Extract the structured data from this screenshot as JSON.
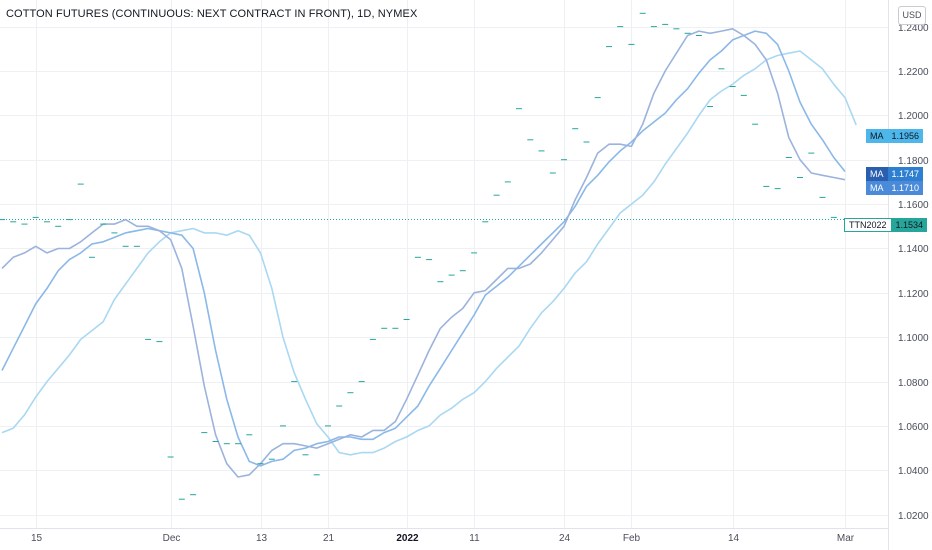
{
  "title": "COTTON FUTURES (CONTINUOUS: NEXT CONTRACT IN FRONT), 1D, NYMEX",
  "currency_button": "USD",
  "colors": {
    "price": "#26a69a",
    "ma_fast": "#9bb3dd",
    "ma_mid": "#8ab8e8",
    "ma_slow": "#a9d8f2",
    "tag_ma1": "#4db6ea",
    "tag_ma2": "#2f7fd0",
    "tag_ma3": "#4a8ad8",
    "tag_price": "#26a69a",
    "grid": "#eef0f3"
  },
  "tags": {
    "ma1": {
      "label": "MA",
      "value": "1.1956"
    },
    "ma2": {
      "label": "MA",
      "value": "1.1747"
    },
    "ma3": {
      "label": "MA",
      "value": "1.1710"
    },
    "price": {
      "label": "TTN2022",
      "value": "1.1534"
    }
  },
  "chart_data": {
    "type": "line",
    "title": "COTTON FUTURES (CONTINUOUS: NEXT CONTRACT IN FRONT), 1D, NYMEX",
    "ylim": [
      1.014,
      1.252
    ],
    "y_ticks": [
      "1.0200",
      "1.0400",
      "1.0600",
      "1.0800",
      "1.1000",
      "1.1200",
      "1.1400",
      "1.1600",
      "1.1800",
      "1.2000",
      "1.2200",
      "1.2400"
    ],
    "x_labels": [
      {
        "label": "15",
        "i": 3,
        "bold": false
      },
      {
        "label": "Dec",
        "i": 15,
        "bold": false
      },
      {
        "label": "13",
        "i": 23,
        "bold": false
      },
      {
        "label": "21",
        "i": 29,
        "bold": false
      },
      {
        "label": "2022",
        "i": 36,
        "bold": true
      },
      {
        "label": "11",
        "i": 42,
        "bold": false
      },
      {
        "label": "24",
        "i": 50,
        "bold": false
      },
      {
        "label": "Feb",
        "i": 56,
        "bold": false
      },
      {
        "label": "14",
        "i": 65,
        "bold": false
      },
      {
        "label": "Mar",
        "i": 75,
        "bold": false
      }
    ],
    "n_slots": 77,
    "current_price": 1.1534,
    "grid": true,
    "series": [
      {
        "key": "price",
        "type": "dash",
        "values": [
          1.153,
          1.152,
          1.151,
          1.154,
          1.152,
          1.15,
          1.153,
          1.169,
          1.136,
          1.151,
          1.147,
          1.141,
          1.141,
          1.099,
          1.098,
          1.046,
          1.027,
          1.029,
          1.057,
          1.053,
          1.052,
          1.052,
          1.056,
          1.043,
          1.045,
          1.06,
          1.08,
          1.047,
          1.038,
          1.06,
          1.069,
          1.075,
          1.08,
          1.099,
          1.104,
          1.104,
          1.108,
          1.136,
          1.135,
          1.125,
          1.128,
          1.13,
          1.138,
          1.152,
          1.164,
          1.17,
          1.203,
          1.189,
          1.184,
          1.174,
          1.18,
          1.194,
          1.188,
          1.208,
          1.231,
          1.24,
          1.232,
          1.246,
          1.24,
          1.241,
          1.239,
          1.237,
          1.236,
          1.204,
          1.221,
          1.213,
          1.209,
          1.196,
          1.168,
          1.167,
          1.181,
          1.172,
          1.183,
          1.163,
          1.154,
          null,
          null
        ]
      },
      {
        "key": "ma_fast",
        "type": "line",
        "values": [
          1.131,
          1.136,
          1.138,
          1.141,
          1.138,
          1.14,
          1.14,
          1.143,
          1.147,
          1.151,
          1.151,
          1.153,
          1.15,
          1.15,
          1.148,
          1.144,
          1.131,
          1.105,
          1.078,
          1.056,
          1.043,
          1.037,
          1.038,
          1.043,
          1.049,
          1.052,
          1.052,
          1.051,
          1.05,
          1.052,
          1.054,
          1.056,
          1.055,
          1.058,
          1.058,
          1.062,
          1.072,
          1.083,
          1.094,
          1.104,
          1.109,
          1.113,
          1.12,
          1.121,
          1.126,
          1.131,
          1.131,
          1.133,
          1.138,
          1.144,
          1.15,
          1.162,
          1.172,
          1.183,
          1.187,
          1.187,
          1.186,
          1.196,
          1.21,
          1.22,
          1.228,
          1.236,
          1.238,
          1.237,
          1.238,
          1.239,
          1.236,
          1.232,
          1.225,
          1.21,
          1.19,
          1.18,
          1.174,
          1.173,
          1.172,
          1.171,
          null
        ]
      },
      {
        "key": "ma_mid",
        "type": "line",
        "values": [
          1.085,
          1.095,
          1.105,
          1.115,
          1.122,
          1.13,
          1.135,
          1.138,
          1.142,
          1.143,
          1.145,
          1.147,
          1.148,
          1.149,
          1.148,
          1.147,
          1.146,
          1.14,
          1.12,
          1.094,
          1.072,
          1.055,
          1.044,
          1.042,
          1.044,
          1.045,
          1.049,
          1.05,
          1.052,
          1.053,
          1.055,
          1.055,
          1.054,
          1.054,
          1.057,
          1.059,
          1.064,
          1.069,
          1.078,
          1.086,
          1.094,
          1.102,
          1.11,
          1.119,
          1.123,
          1.127,
          1.132,
          1.137,
          1.142,
          1.147,
          1.152,
          1.159,
          1.168,
          1.173,
          1.179,
          1.184,
          1.188,
          1.193,
          1.197,
          1.201,
          1.207,
          1.212,
          1.219,
          1.225,
          1.229,
          1.234,
          1.236,
          1.238,
          1.237,
          1.232,
          1.22,
          1.206,
          1.196,
          1.189,
          1.181,
          1.1747,
          null
        ]
      },
      {
        "key": "ma_slow",
        "type": "line",
        "values": [
          1.057,
          1.059,
          1.065,
          1.073,
          1.08,
          1.086,
          1.092,
          1.099,
          1.103,
          1.107,
          1.117,
          1.124,
          1.131,
          1.138,
          1.143,
          1.147,
          1.148,
          1.149,
          1.147,
          1.147,
          1.146,
          1.148,
          1.146,
          1.138,
          1.122,
          1.1,
          1.084,
          1.072,
          1.061,
          1.055,
          1.048,
          1.047,
          1.048,
          1.048,
          1.05,
          1.053,
          1.055,
          1.058,
          1.06,
          1.065,
          1.068,
          1.072,
          1.075,
          1.08,
          1.086,
          1.091,
          1.096,
          1.104,
          1.111,
          1.116,
          1.122,
          1.129,
          1.134,
          1.142,
          1.149,
          1.156,
          1.16,
          1.164,
          1.17,
          1.178,
          1.185,
          1.192,
          1.2,
          1.207,
          1.211,
          1.214,
          1.218,
          1.221,
          1.225,
          1.227,
          1.228,
          1.229,
          1.225,
          1.221,
          1.214,
          1.208,
          1.1956
        ]
      }
    ]
  }
}
